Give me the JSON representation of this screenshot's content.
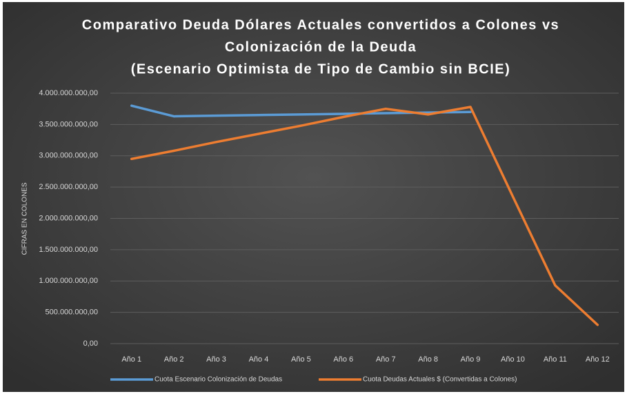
{
  "chart_data": {
    "type": "line",
    "title": [
      "Comparativo Deuda Dólares Actuales convertidos a Colones vs",
      "Colonización de la Deuda",
      "(Escenario Optimista de Tipo de Cambio sin BCIE)"
    ],
    "y_axis_label": "CIFRAS EN COLONES",
    "categories": [
      "Año 1",
      "Año 2",
      "Año 3",
      "Año 4",
      "Año 5",
      "Año 6",
      "Año 7",
      "Año 8",
      "Año 9",
      "Año 10",
      "Año 11",
      "Año 12"
    ],
    "series": [
      {
        "name": "Cuota Escenario Colonización de Deudas",
        "color": "#5b9bd5",
        "values": [
          3800000000,
          3630000000,
          3640000000,
          3650000000,
          3660000000,
          3670000000,
          3680000000,
          3690000000,
          3700000000,
          null,
          null,
          null
        ]
      },
      {
        "name": "Cuota Deudas Actuales $ (Convertidas a Colones)",
        "color": "#ed7d31",
        "values": [
          2950000000,
          3080000000,
          3220000000,
          3350000000,
          3480000000,
          3620000000,
          3750000000,
          3660000000,
          3780000000,
          2350000000,
          930000000,
          300000000
        ]
      }
    ],
    "ylim": [
      0,
      4000000000
    ],
    "yticks": [
      {
        "value": 0,
        "label": "0,00"
      },
      {
        "value": 500000000,
        "label": "500.000.000,00"
      },
      {
        "value": 1000000000,
        "label": "1.000.000.000,00"
      },
      {
        "value": 1500000000,
        "label": "1.500.000.000,00"
      },
      {
        "value": 2000000000,
        "label": "2.000.000.000,00"
      },
      {
        "value": 2500000000,
        "label": "2.500.000.000,00"
      },
      {
        "value": 3000000000,
        "label": "3.000.000.000,00"
      },
      {
        "value": 3500000000,
        "label": "3.500.000.000,00"
      },
      {
        "value": 4000000000,
        "label": "4.000.000.000,00"
      }
    ],
    "grid": true,
    "legend": "bottom"
  }
}
